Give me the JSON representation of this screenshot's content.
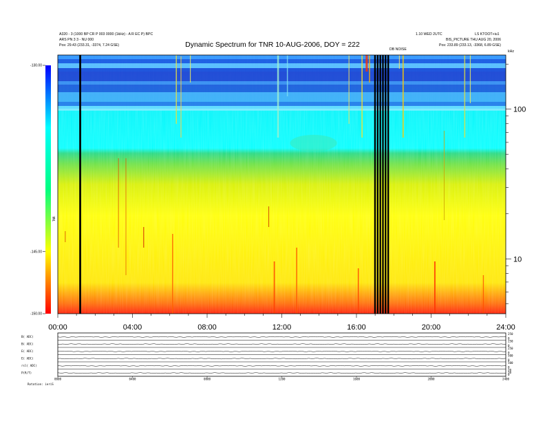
{
  "title": "Dynamic Spectrum for TNR 10-AUG-2006, DOY = 222",
  "header": {
    "left_line1": "A320 - 3 (1000 BP CR P 003 0000 (1kHz) - A R EC P) BPC",
    "left_line2": "ARS PN 3 3 - NU 000",
    "left_line3": "Pos:   29.43 (233.31, -3374, 7.24 GSE)",
    "right_line1": "1.10 WED 2UTC",
    "right_line2": "LS KTOOT+iu1",
    "right_line3": "BIS_PICTURE  THU AUG 20, 2006",
    "right_line4": "Pos:   233.89 (233.13, -3368, 6.89 GSE)",
    "gap_label": "DB NOISE",
    "freq_unit": "kHz",
    "colorbar_axis_label": "TNR",
    "bottom_label": "Rotation: ieriS"
  },
  "chart_data": {
    "type": "heatmap",
    "title": "Dynamic Spectrum for TNR 10-AUG-2006, DOY = 222",
    "x_axis": {
      "label": "",
      "range_hours": [
        0,
        24
      ],
      "ticks": [
        "00:00",
        "04:00",
        "08:00",
        "12:00",
        "16:00",
        "20:00",
        "24:00"
      ],
      "tick_hours": [
        0,
        4,
        8,
        12,
        16,
        20,
        24
      ]
    },
    "y_axis_frequency": {
      "scale": "log",
      "unit": "kHz",
      "range": [
        4.3,
        230
      ],
      "labeled_ticks": [
        10,
        100
      ],
      "labeled_tick_text": [
        "10",
        "100"
      ]
    },
    "colorbar": {
      "range": [
        -150,
        -130
      ],
      "ticks": [
        -130,
        -145,
        -150
      ],
      "tick_labels": [
        "-130.00",
        "-145.00",
        "-150.00"
      ],
      "colors": [
        "#ff0000",
        "#ffff00",
        "#00ff80",
        "#00ffff",
        "#0000ff"
      ]
    },
    "data_gaps_hours": [
      {
        "start": 1.15,
        "end": 1.25,
        "kind": "single"
      },
      {
        "start": 16.95,
        "end": 17.8,
        "kind": "gap-band"
      }
    ],
    "stack_panels": {
      "labels": [
        "B( ADC)",
        "B( ADC)",
        "E( ADC)",
        "E( ADC)",
        "rsl( ADC)",
        "P(R/T)"
      ],
      "right_ticks": [
        [
          "250",
          "0"
        ],
        [
          "250",
          "0"
        ],
        [
          "250",
          "0"
        ],
        [
          "500",
          "0"
        ],
        [
          "500",
          "0"
        ],
        [
          "20",
          "10",
          "0"
        ]
      ],
      "x_ticks": [
        "0000",
        "0400",
        "0800",
        "1200",
        "1600",
        "2000",
        "2400"
      ]
    }
  }
}
